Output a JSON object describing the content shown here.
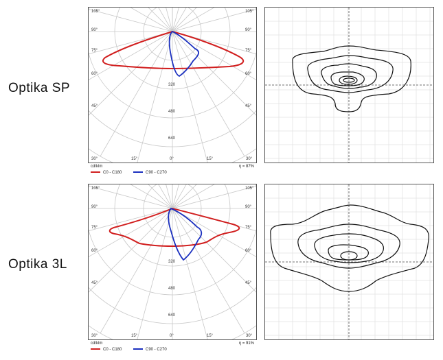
{
  "rows": [
    {
      "label": "Optika SP",
      "unit": "cd/klm",
      "efficiency": "η = 87%",
      "legend": [
        {
          "name": "C0 - C180",
          "color": "#d11f1f"
        },
        {
          "name": "C90 - C270",
          "color": "#1a2fbf"
        }
      ],
      "angle_labels_left": [
        "105°",
        "90°",
        "75°",
        "60°",
        "45°",
        "30°",
        "15°"
      ],
      "angle_labels_right": [
        "105°",
        "90°",
        "75°",
        "60°",
        "45°",
        "30°",
        "15°"
      ],
      "bottom_labels": [
        "30°",
        "15°",
        "0°",
        "15°",
        "30°"
      ],
      "radial_labels": [
        "320",
        "480",
        "640"
      ]
    },
    {
      "label": "Optika 3L",
      "unit": "cd/klm",
      "efficiency": "η = 91%",
      "legend": [
        {
          "name": "C0 - C180",
          "color": "#d11f1f"
        },
        {
          "name": "C90 - C270",
          "color": "#1a2fbf"
        }
      ],
      "angle_labels_left": [
        "105°",
        "90°",
        "75°",
        "60°",
        "45°",
        "30°",
        "15°"
      ],
      "angle_labels_right": [
        "105°",
        "90°",
        "75°",
        "60°",
        "45°",
        "30°",
        "15°"
      ],
      "bottom_labels": [
        "30°",
        "15°",
        "0°",
        "15°",
        "30°"
      ],
      "radial_labels": [
        "320",
        "480",
        "640"
      ]
    }
  ]
}
